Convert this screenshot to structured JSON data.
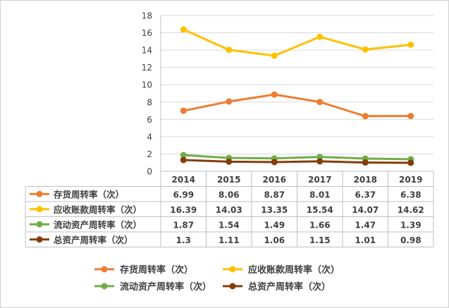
{
  "chart_data": {
    "type": "line",
    "categories": [
      "2014",
      "2015",
      "2016",
      "2017",
      "2018",
      "2019"
    ],
    "ylim": [
      0,
      18
    ],
    "y_ticks": [
      0,
      2,
      4,
      6,
      8,
      10,
      12,
      14,
      16,
      18
    ],
    "grid": "horizontal",
    "legend_position": "bottom",
    "data_table": true,
    "series": [
      {
        "name": "存货周转率（次）",
        "color": "#ED7D31",
        "values": [
          6.99,
          8.06,
          8.87,
          8.01,
          6.37,
          6.38
        ]
      },
      {
        "name": "应收账款周转率（次）",
        "color": "#FFC000",
        "values": [
          16.39,
          14.03,
          13.35,
          15.54,
          14.07,
          14.62
        ]
      },
      {
        "name": "流动资产周转率（次）",
        "color": "#70AD47",
        "values": [
          1.87,
          1.54,
          1.49,
          1.66,
          1.47,
          1.39
        ]
      },
      {
        "name": "总资产周转率（次）",
        "color": "#843C0C",
        "values": [
          1.3,
          1.11,
          1.06,
          1.15,
          1.01,
          0.98
        ]
      }
    ]
  }
}
